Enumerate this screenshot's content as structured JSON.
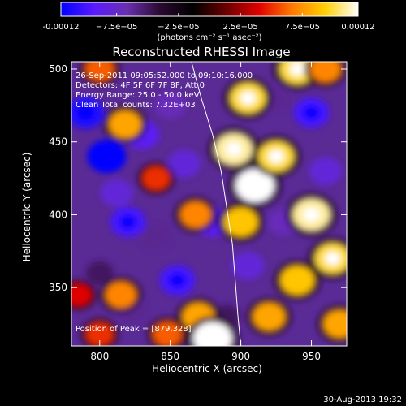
{
  "chart_data": {
    "type": "heatmap",
    "title": "Reconstructed RHESSI Image",
    "xlabel": "Heliocentric X (arcsec)",
    "ylabel": "Heliocentric Y (arcsec)",
    "xlim": [
      780,
      975
    ],
    "ylim": [
      310,
      505
    ],
    "x_ticks": [
      800,
      850,
      900,
      950
    ],
    "y_ticks": [
      350,
      400,
      450,
      500
    ],
    "colorbar": {
      "label": "(photons cm⁻² s⁻¹ asec⁻²)",
      "range": [
        -0.00012,
        0.00012
      ],
      "ticks": [
        "-0.00012",
        "−7.5e−05",
        "−2.5e−05",
        "2.5e−05",
        "7.5e−05",
        "0.00012"
      ],
      "tick_values": [
        -0.00012,
        -7.5e-05,
        -2.5e-05,
        2.5e-05,
        7.5e-05,
        0.00012
      ],
      "colors": [
        "#0000ff",
        "#5a1aff",
        "#6a2fb0",
        "#2a0a30",
        "#000000",
        "#6a0000",
        "#e00000",
        "#ff7a00",
        "#ffd000",
        "#ffffff"
      ]
    },
    "annotations": [
      "26-Sep-2011 09:05:52.000 to 09:10:16.000",
      "Detectors: 4F 5F 6F 7F 8F, Att 0",
      "Energy Range: 25.0 - 50.0 keV",
      "Clean      Total counts: 7.32E+03"
    ],
    "peak_label": "Position of Peak = [879,328]",
    "limb": [
      [
        865,
        505
      ],
      [
        872,
        480
      ],
      [
        880,
        455
      ],
      [
        886,
        430
      ],
      [
        890,
        405
      ],
      [
        894,
        380
      ],
      [
        896,
        355
      ],
      [
        898,
        330
      ],
      [
        900,
        310
      ]
    ],
    "blobs": [
      {
        "x": 790,
        "y": 470,
        "v": -0.00011
      },
      {
        "x": 805,
        "y": 440,
        "v": -0.00012
      },
      {
        "x": 812,
        "y": 415,
        "v": -8e-05
      },
      {
        "x": 820,
        "y": 395,
        "v": -0.0001
      },
      {
        "x": 830,
        "y": 455,
        "v": -9e-05
      },
      {
        "x": 850,
        "y": 475,
        "v": -7e-05
      },
      {
        "x": 860,
        "y": 435,
        "v": -8e-05
      },
      {
        "x": 840,
        "y": 385,
        "v": -6e-05
      },
      {
        "x": 855,
        "y": 355,
        "v": -0.0001
      },
      {
        "x": 880,
        "y": 395,
        "v": -9e-05
      },
      {
        "x": 905,
        "y": 365,
        "v": -8e-05
      },
      {
        "x": 930,
        "y": 395,
        "v": -7e-05
      },
      {
        "x": 950,
        "y": 470,
        "v": -0.0001
      },
      {
        "x": 960,
        "y": 430,
        "v": -8e-05
      },
      {
        "x": 925,
        "y": 480,
        "v": -6e-05
      },
      {
        "x": 800,
        "y": 360,
        "v": -5e-05
      },
      {
        "x": 822,
        "y": 335,
        "v": -6e-05
      },
      {
        "x": 890,
        "y": 330,
        "v": -5e-05
      },
      {
        "x": 800,
        "y": 500,
        "v": 6e-05
      },
      {
        "x": 818,
        "y": 462,
        "v": 8e-05
      },
      {
        "x": 840,
        "y": 425,
        "v": 5e-05
      },
      {
        "x": 868,
        "y": 400,
        "v": 7e-05
      },
      {
        "x": 895,
        "y": 445,
        "v": 0.00011
      },
      {
        "x": 905,
        "y": 480,
        "v": 0.0001
      },
      {
        "x": 910,
        "y": 420,
        "v": 0.00012
      },
      {
        "x": 925,
        "y": 440,
        "v": 0.0001
      },
      {
        "x": 940,
        "y": 500,
        "v": 0.0001
      },
      {
        "x": 950,
        "y": 400,
        "v": 0.00011
      },
      {
        "x": 965,
        "y": 370,
        "v": 0.0001
      },
      {
        "x": 940,
        "y": 355,
        "v": 9e-05
      },
      {
        "x": 920,
        "y": 330,
        "v": 8e-05
      },
      {
        "x": 870,
        "y": 330,
        "v": 8e-05
      },
      {
        "x": 880,
        "y": 315,
        "v": 0.00012
      },
      {
        "x": 848,
        "y": 318,
        "v": 6e-05
      },
      {
        "x": 800,
        "y": 318,
        "v": 5e-05
      },
      {
        "x": 785,
        "y": 345,
        "v": 4e-05
      },
      {
        "x": 815,
        "y": 345,
        "v": 7e-05
      },
      {
        "x": 960,
        "y": 500,
        "v": 7e-05
      },
      {
        "x": 900,
        "y": 395,
        "v": 9e-05
      },
      {
        "x": 970,
        "y": 325,
        "v": 8e-05
      }
    ]
  },
  "footer": {
    "date": "30-Aug-2013 19:32"
  }
}
